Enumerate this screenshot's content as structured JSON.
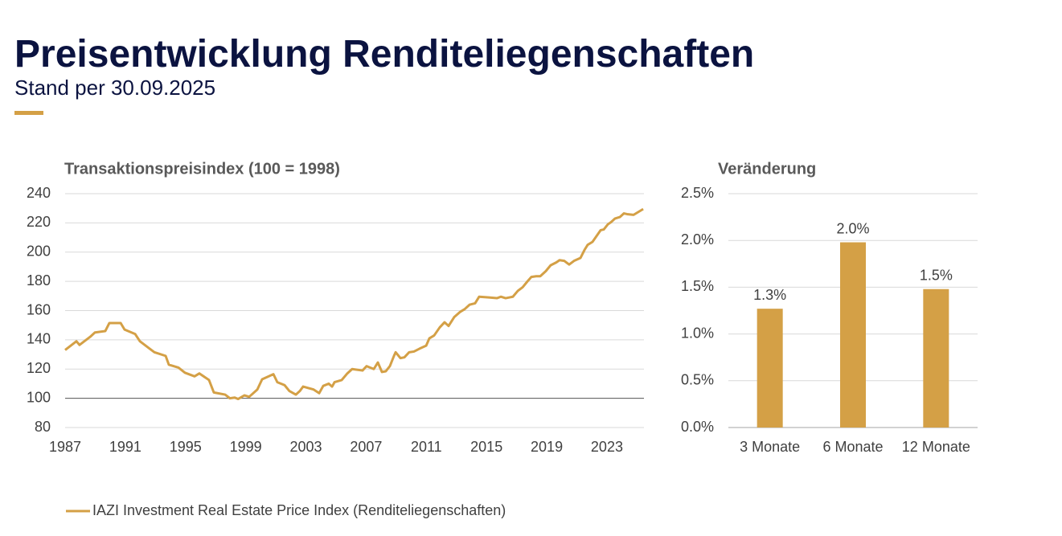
{
  "header": {
    "title": "Preisentwicklung Renditeliegenschaften",
    "subtitle": "Stand per 30.09.2025"
  },
  "chart_data": [
    {
      "type": "line",
      "title": "Transaktionspreisindex (100 = 1998)",
      "x": [
        1987.0,
        1987.75,
        1987.96,
        1988.66,
        1988.98,
        1989.67,
        1989.94,
        1990.69,
        1990.95,
        1991.65,
        1991.97,
        1992.61,
        1992.93,
        1993.68,
        1993.89,
        1994.53,
        1994.96,
        1995.6,
        1995.92,
        1996.56,
        1996.88,
        1997.63,
        1997.95,
        1998.27,
        1998.49,
        1998.91,
        1999.23,
        1999.77,
        2000.09,
        2000.84,
        2001.1,
        2001.58,
        2001.9,
        2002.33,
        2002.6,
        2002.81,
        2003.51,
        2003.88,
        2004.15,
        2004.52,
        2004.74,
        2004.9,
        2005.38,
        2005.75,
        2006.07,
        2006.76,
        2007.03,
        2007.51,
        2007.78,
        2008.05,
        2008.31,
        2008.58,
        2008.85,
        2008.96,
        2009.28,
        2009.54,
        2009.86,
        2010.18,
        2010.56,
        2010.99,
        2011.2,
        2011.52,
        2011.89,
        2012.21,
        2012.48,
        2012.85,
        2013.23,
        2013.55,
        2013.87,
        2014.24,
        2014.51,
        2015.15,
        2015.69,
        2015.95,
        2016.27,
        2016.75,
        2017.08,
        2017.4,
        2017.72,
        2017.98,
        2018.3,
        2018.57,
        2018.94,
        2019.26,
        2019.64,
        2019.85,
        2020.17,
        2020.49,
        2020.81,
        2021.24,
        2021.51,
        2021.72,
        2022.04,
        2022.31,
        2022.58,
        2022.79,
        2023.06,
        2023.27,
        2023.54,
        2023.86,
        2024.13,
        2024.34,
        2024.77,
        2025.09,
        2025.41
      ],
      "series": [
        {
          "name": "IAZI Investment Real Estate Price Index (Renditeliegenschaften)",
          "color": "#d4a046",
          "values": [
            133,
            139,
            136.5,
            142,
            145,
            146,
            151.5,
            151.5,
            147,
            144,
            139,
            134,
            131.5,
            129,
            123,
            121,
            117.5,
            115,
            117,
            112.5,
            104,
            102.5,
            100,
            100.5,
            99.5,
            102,
            101,
            106,
            113,
            116.5,
            111,
            109,
            105,
            102.5,
            105,
            108,
            106,
            103.5,
            108.5,
            110,
            108,
            111,
            112.5,
            117,
            120,
            119,
            122,
            120,
            124.5,
            118,
            118.5,
            122,
            129,
            131.5,
            127.5,
            128,
            131.5,
            132,
            134,
            136,
            141,
            143,
            148.5,
            152,
            149.5,
            155.5,
            159,
            161,
            164,
            165,
            169.5,
            169,
            168.5,
            169.5,
            168.5,
            169.5,
            173.5,
            176,
            180,
            183,
            183.5,
            183.5,
            187,
            191,
            193,
            194.5,
            194,
            191.5,
            194,
            196,
            201.5,
            205,
            207,
            211,
            215,
            215.5,
            219,
            220.5,
            223,
            224,
            226.5,
            226,
            225.5,
            227.5,
            229.5
          ]
        }
      ],
      "xlim": [
        1987,
        2025.46
      ],
      "xticks": [
        1987,
        1991,
        1995,
        1999,
        2003,
        2007,
        2011,
        2015,
        2019,
        2023
      ],
      "ylim": [
        80,
        240
      ],
      "yticks": [
        80,
        100,
        120,
        140,
        160,
        180,
        200,
        220,
        240
      ],
      "baseline": 100,
      "grid": true,
      "legend": "bottom"
    },
    {
      "type": "bar",
      "title": "Veränderung",
      "categories": [
        "3 Monate",
        "6 Monate",
        "12 Monate"
      ],
      "values": [
        1.27,
        1.98,
        1.48
      ],
      "value_labels": [
        "1.3%",
        "2.0%",
        "1.5%"
      ],
      "color": "#d4a046",
      "ylim": [
        0,
        2.5
      ],
      "yticks": [
        {
          "value": 0,
          "label": "0.0%"
        },
        {
          "value": 0.5,
          "label": "0.5%"
        },
        {
          "value": 1,
          "label": "1.0%"
        },
        {
          "value": 1.5,
          "label": "1.5%"
        },
        {
          "value": 2,
          "label": "2.0%"
        },
        {
          "value": 2.5,
          "label": "2.5%"
        }
      ],
      "grid": true
    }
  ]
}
